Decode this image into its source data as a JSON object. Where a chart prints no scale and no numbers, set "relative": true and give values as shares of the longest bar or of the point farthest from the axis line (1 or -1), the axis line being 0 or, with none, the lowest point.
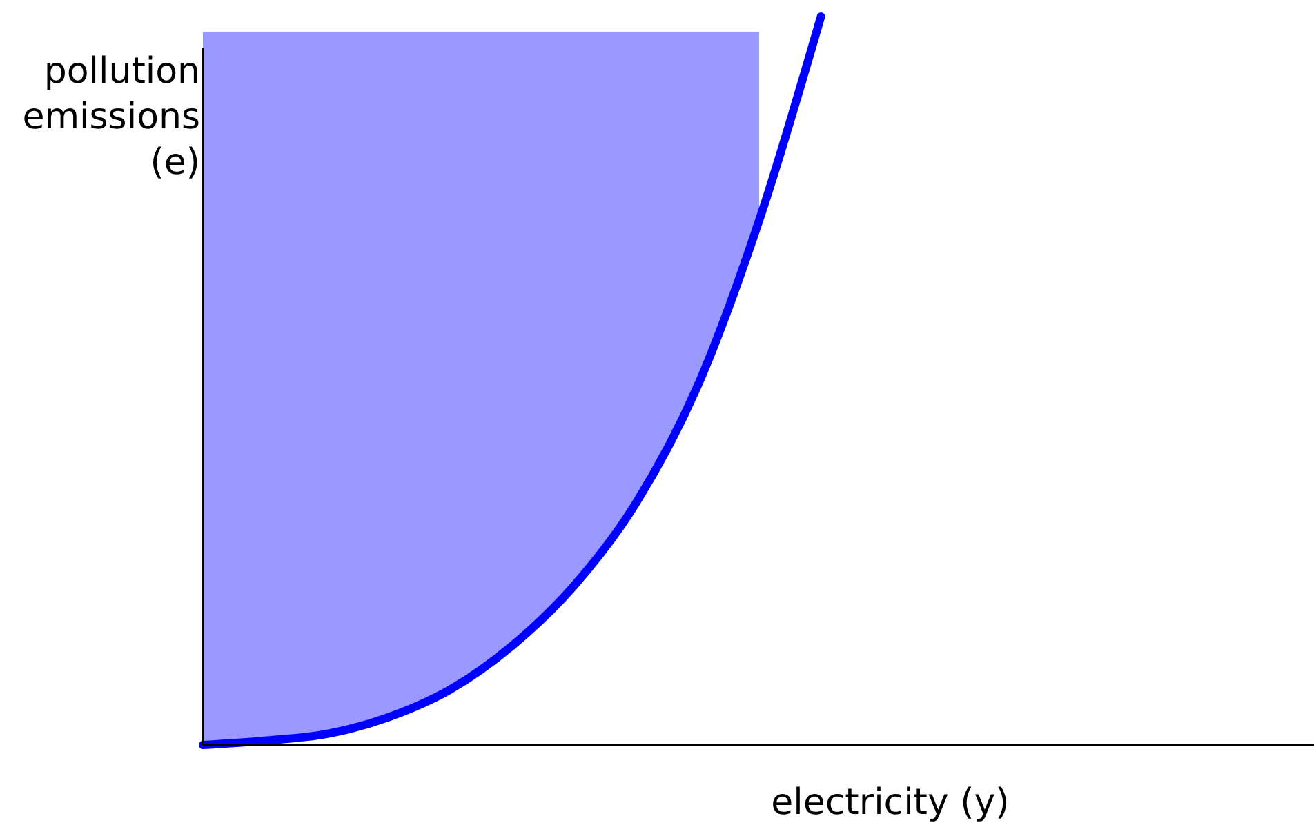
{
  "chart_data": {
    "type": "line",
    "relative": true,
    "xlabel": "electricity (y)",
    "ylabel": "pollution emissions (e)",
    "categories": [
      null,
      null,
      null,
      null,
      null,
      null,
      null,
      null,
      null,
      null,
      null,
      null,
      null,
      null,
      null,
      null,
      null,
      null,
      null
    ],
    "series": [
      {
        "color": "#0000ff",
        "values": [
          0,
          0.006,
          0.015,
          0.038,
          0.076,
          0.136,
          0.218,
          0.331,
          0.492,
          0.72,
          1,
          null,
          null,
          null,
          null,
          null,
          null,
          null,
          null
        ],
        "lower": [
          0,
          0.006,
          0.015,
          0.038,
          0.076,
          0.136,
          0.218,
          0.331,
          0.492,
          0.72,
          null,
          null,
          null,
          null,
          null,
          null,
          null,
          null,
          null
        ],
        "upper": [
          0.979,
          0.979,
          0.979,
          0.979,
          0.979,
          0.979,
          0.979,
          0.979,
          0.979,
          0.979,
          null,
          null,
          null,
          null,
          null,
          null,
          null,
          null,
          null
        ]
      }
    ],
    "marker": "none",
    "line_style": "solid"
  }
}
